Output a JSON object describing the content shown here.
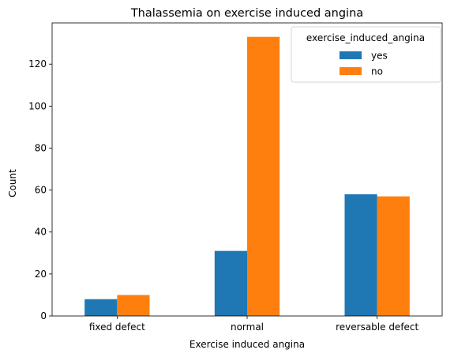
{
  "chart_data": {
    "type": "bar",
    "title": "Thalassemia on exercise induced angina",
    "xlabel": "Exercise induced angina",
    "ylabel": "Count",
    "categories": [
      "fixed defect",
      "normal",
      "reversable defect"
    ],
    "series": [
      {
        "name": "yes",
        "color": "#1f77b4",
        "values": [
          8,
          31,
          58
        ]
      },
      {
        "name": "no",
        "color": "#ff7f0e",
        "values": [
          10,
          133,
          57
        ]
      }
    ],
    "ylim": [
      0,
      139.65
    ],
    "yticks": [
      0,
      20,
      40,
      60,
      80,
      100,
      120
    ],
    "legend": {
      "title": "exercise_induced_angina",
      "placement": "top-right"
    },
    "grid": false
  }
}
